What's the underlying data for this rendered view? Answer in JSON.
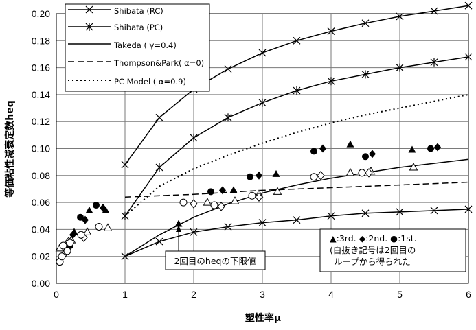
{
  "chart_data": {
    "type": "line",
    "title": "",
    "xlabel": "塑性率μ",
    "ylabel": "等価粘性減衰定数heq",
    "xlim": [
      0,
      6
    ],
    "ylim": [
      0,
      0.2
    ],
    "xticks": [
      "0",
      "1",
      "2",
      "3",
      "4",
      "5",
      "6"
    ],
    "yticks": [
      "0.00",
      "0.02",
      "0.04",
      "0.06",
      "0.08",
      "0.10",
      "0.12",
      "0.14",
      "0.16",
      "0.18",
      "0.20"
    ],
    "grid": true,
    "legend_position": "top-left",
    "series": [
      {
        "name": "Shibata (RC)",
        "style": "solid-x-marker",
        "x": [
          1.0,
          1.5,
          2.0,
          2.5,
          3.0,
          3.5,
          4.0,
          4.5,
          5.0,
          5.5,
          6.0
        ],
        "y": [
          0.088,
          0.123,
          0.144,
          0.159,
          0.171,
          0.18,
          0.187,
          0.193,
          0.198,
          0.202,
          0.206
        ]
      },
      {
        "name": "Shibata (PC)",
        "style": "solid-x-marker",
        "x": [
          1.0,
          1.5,
          2.0,
          2.5,
          3.0,
          3.5,
          4.0,
          4.5,
          5.0,
          5.5,
          6.0
        ],
        "y": [
          0.05,
          0.086,
          0.108,
          0.123,
          0.134,
          0.143,
          0.15,
          0.155,
          0.16,
          0.164,
          0.168
        ]
      },
      {
        "name": "Takeda ( γ=0.4)",
        "style": "solid",
        "x": [
          1.0,
          1.5,
          2.0,
          2.5,
          3.0,
          3.5,
          4.0,
          4.5,
          5.0,
          5.5,
          6.0
        ],
        "y": [
          0.02,
          0.036,
          0.049,
          0.059,
          0.067,
          0.073,
          0.078,
          0.082,
          0.086,
          0.089,
          0.092
        ]
      },
      {
        "name": "Thompson&Park( α=0)",
        "style": "dashed",
        "x": [
          1.0,
          2.0,
          3.0,
          4.0,
          5.0,
          6.0
        ],
        "y": [
          0.064,
          0.066,
          0.069,
          0.071,
          0.073,
          0.075
        ]
      },
      {
        "name": "PC Model ( α=0.9)",
        "style": "dotted",
        "x": [
          1.0,
          1.5,
          2.0,
          2.5,
          3.0,
          3.5,
          4.0,
          4.5,
          5.0,
          5.5,
          6.0
        ],
        "y": [
          0.05,
          0.072,
          0.085,
          0.095,
          0.104,
          0.112,
          0.119,
          0.125,
          0.13,
          0.135,
          0.14
        ]
      },
      {
        "name": "Shibata PC lower",
        "style": "solid-x-marker",
        "legend": false,
        "x": [
          1.0,
          1.5,
          2.0,
          2.5,
          3.0,
          3.5,
          4.0,
          4.5,
          5.0,
          5.5,
          6.0
        ],
        "y": [
          0.02,
          0.031,
          0.038,
          0.042,
          0.045,
          0.047,
          0.05,
          0.052,
          0.053,
          0.054,
          0.055
        ]
      }
    ],
    "points": {
      "triangle_filled": [
        [
          0.26,
          0.038
        ],
        [
          0.48,
          0.054
        ],
        [
          0.72,
          0.054
        ],
        [
          1.78,
          0.044
        ],
        [
          2.58,
          0.069
        ],
        [
          3.2,
          0.081
        ],
        [
          4.28,
          0.103
        ],
        [
          5.18,
          0.099
        ]
      ],
      "triangle_open": [
        [
          0.05,
          0.026
        ],
        [
          0.22,
          0.032
        ],
        [
          0.45,
          0.038
        ],
        [
          0.75,
          0.041
        ],
        [
          2.2,
          0.06
        ],
        [
          2.6,
          0.061
        ],
        [
          2.95,
          0.066
        ],
        [
          3.22,
          0.068
        ],
        [
          4.28,
          0.082
        ],
        [
          4.58,
          0.083
        ],
        [
          5.2,
          0.086
        ]
      ],
      "diamond_filled": [
        [
          0.24,
          0.036
        ],
        [
          0.42,
          0.047
        ],
        [
          0.68,
          0.056
        ],
        [
          2.42,
          0.069
        ],
        [
          2.95,
          0.08
        ],
        [
          3.88,
          0.1
        ],
        [
          4.6,
          0.096
        ],
        [
          5.55,
          0.101
        ]
      ],
      "diamond_open": [
        [
          0.12,
          0.022
        ],
        [
          0.18,
          0.031
        ],
        [
          0.4,
          0.034
        ],
        [
          2.0,
          0.059
        ],
        [
          2.4,
          0.057
        ],
        [
          2.95,
          0.064
        ],
        [
          3.85,
          0.08
        ],
        [
          4.55,
          0.082
        ]
      ],
      "circle_filled": [
        [
          0.2,
          0.028
        ],
        [
          0.35,
          0.049
        ],
        [
          0.58,
          0.058
        ],
        [
          2.25,
          0.068
        ],
        [
          2.82,
          0.079
        ],
        [
          3.75,
          0.098
        ],
        [
          4.5,
          0.094
        ],
        [
          5.45,
          0.1
        ]
      ],
      "circle_open": [
        [
          0.05,
          0.016
        ],
        [
          0.08,
          0.02
        ],
        [
          0.1,
          0.028
        ],
        [
          0.16,
          0.024
        ],
        [
          0.2,
          0.03
        ],
        [
          0.36,
          0.036
        ],
        [
          0.62,
          0.042
        ],
        [
          1.85,
          0.06
        ],
        [
          2.3,
          0.058
        ],
        [
          2.85,
          0.065
        ],
        [
          3.75,
          0.079
        ],
        [
          4.45,
          0.082
        ]
      ]
    }
  },
  "legend": {
    "items": [
      {
        "label": "Shibata (RC)",
        "style": "x-line"
      },
      {
        "label": "Shibata (PC)",
        "style": "star-line"
      },
      {
        "label": "Takeda ( γ=0.4)",
        "style": "solid"
      },
      {
        "label": "Thompson&Park( α=0)",
        "style": "dashed"
      },
      {
        "label": "PC Model ( α=0.9)",
        "style": "dotted"
      }
    ]
  },
  "annotation": {
    "lower_limit": "2回目のheqの下限値"
  },
  "marker_key": {
    "line1": "▲:3rd. ◆:2nd. ●:1st.",
    "line2": "(白抜き記号は2回目の",
    "line3": "ループから得られた"
  }
}
